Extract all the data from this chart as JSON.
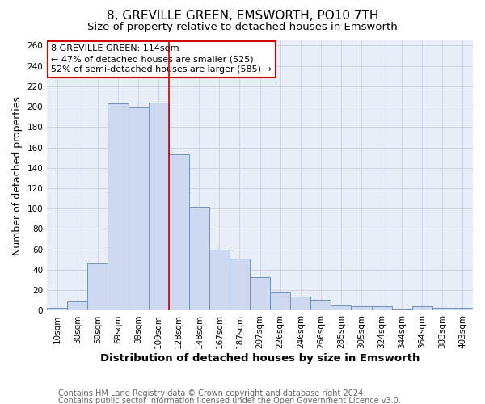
{
  "title": "8, GREVILLE GREEN, EMSWORTH, PO10 7TH",
  "subtitle": "Size of property relative to detached houses in Emsworth",
  "xlabel": "Distribution of detached houses by size in Emsworth",
  "ylabel": "Number of detached properties",
  "categories": [
    "10sqm",
    "30sqm",
    "50sqm",
    "69sqm",
    "89sqm",
    "109sqm",
    "128sqm",
    "148sqm",
    "167sqm",
    "187sqm",
    "207sqm",
    "226sqm",
    "246sqm",
    "266sqm",
    "285sqm",
    "305sqm",
    "324sqm",
    "344sqm",
    "364sqm",
    "383sqm",
    "403sqm"
  ],
  "bar_values": [
    3,
    9,
    46,
    203,
    199,
    204,
    153,
    102,
    60,
    51,
    33,
    18,
    14,
    11,
    5,
    4,
    4,
    1,
    4,
    3,
    3
  ],
  "bar_color": "#ccd9ee",
  "bar_edge_color": "#7090c0",
  "plot_bg_color": "#e8eef8",
  "fig_bg_color": "#ffffff",
  "grid_color": "#c8d0e0",
  "vline_color": "#cc0000",
  "annotation_title": "8 GREVILLE GREEN: 114sqm",
  "annotation_line1": "← 47% of detached houses are smaller (525)",
  "annotation_line2": "52% of semi-detached houses are larger (585) →",
  "annotation_box_fill": "#ffffff",
  "annotation_box_edge": "#cc0000",
  "footer1": "Contains HM Land Registry data © Crown copyright and database right 2024.",
  "footer2": "Contains public sector information licensed under the Open Government Licence v3.0.",
  "ylim": [
    0,
    265
  ],
  "yticks": [
    0,
    20,
    40,
    60,
    80,
    100,
    120,
    140,
    160,
    180,
    200,
    220,
    240,
    260
  ],
  "title_fontsize": 11,
  "subtitle_fontsize": 9.5,
  "xlabel_fontsize": 9.5,
  "ylabel_fontsize": 9,
  "tick_fontsize": 7.5,
  "annotation_fontsize": 8,
  "footer_fontsize": 7
}
